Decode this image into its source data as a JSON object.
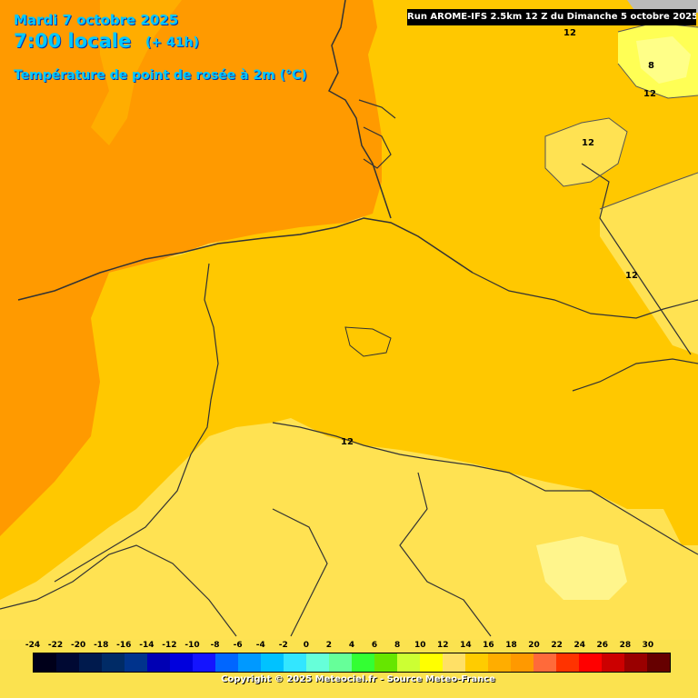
{
  "header": {
    "date": "Mardi 7 octobre 2025",
    "local_time": "7:00 locale",
    "lead_time": "(+ 41h)",
    "variable": "Température de point de rosée à 2m (°C)"
  },
  "run_info": "Run AROME-IFS 2.5km 12 Z du Dimanche 5 octobre 2025",
  "contour_labels": {
    "c1": "12",
    "c2": "8",
    "c3": "12",
    "c4": "12",
    "c5": "12",
    "c6": "12"
  },
  "legend": {
    "ticks": [
      "-24",
      "-22",
      "-20",
      "-18",
      "-16",
      "-14",
      "-12",
      "-10",
      "-8",
      "-6",
      "-4",
      "-2",
      "0",
      "2",
      "4",
      "6",
      "8",
      "10",
      "12",
      "14",
      "16",
      "18",
      "20",
      "22",
      "24",
      "26",
      "28",
      "30"
    ],
    "colors": [
      "#00001a",
      "#000933",
      "#001a4d",
      "#002b66",
      "#00338c",
      "#0000b3",
      "#0000dd",
      "#1414ff",
      "#0066ff",
      "#0099ff",
      "#00c2ff",
      "#33e6ff",
      "#66ffd9",
      "#66ff99",
      "#33ff33",
      "#66e600",
      "#ccff33",
      "#ffff00",
      "#ffe066",
      "#ffcc00",
      "#ffad00",
      "#ff9900",
      "#ff6a3a",
      "#ff3300",
      "#ff0000",
      "#cc0000",
      "#990000",
      "#660000"
    ]
  },
  "copyright": "Copyright © 2025 Meteociel.fr - Source Meteo-France"
}
